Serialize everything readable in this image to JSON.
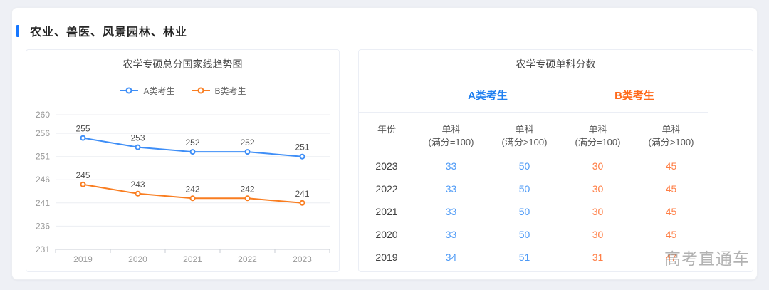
{
  "page": {
    "section_title": "农业、兽医、风景园林、林业",
    "watermark": "高考直通车",
    "accent_color": "#1677ff"
  },
  "chart_panel": {
    "title": "农学专硕总分国家线趋势图"
  },
  "chart_data": {
    "type": "line",
    "title": "农学专硕总分国家线趋势图",
    "categories": [
      "2019",
      "2020",
      "2021",
      "2022",
      "2023"
    ],
    "series": [
      {
        "name": "A类考生",
        "color": "#3e8ef7",
        "values": [
          255,
          253,
          252,
          252,
          251
        ]
      },
      {
        "name": "B类考生",
        "color": "#f97d20",
        "values": [
          245,
          243,
          242,
          242,
          241
        ]
      }
    ],
    "y_ticks": [
      231,
      236,
      241,
      246,
      251,
      256,
      260
    ],
    "ylim": [
      231,
      260
    ],
    "grid": true,
    "legend_position": "top",
    "data_labels": true
  },
  "table_panel": {
    "title": "农学专硕单科分数",
    "groups": [
      {
        "label": "A类考生",
        "color": "#2080f0"
      },
      {
        "label": "B类考生",
        "color": "#ff6a1a"
      }
    ],
    "year_header": "年份",
    "score_columns": [
      {
        "line1": "单科",
        "line2": "(满分=100)"
      },
      {
        "line1": "单科",
        "line2": "(满分>100)"
      },
      {
        "line1": "单科",
        "line2": "(满分=100)"
      },
      {
        "line1": "单科",
        "line2": "(满分>100)"
      }
    ],
    "rows": [
      {
        "year": "2023",
        "a1": "33",
        "a2": "50",
        "b1": "30",
        "b2": "45"
      },
      {
        "year": "2022",
        "a1": "33",
        "a2": "50",
        "b1": "30",
        "b2": "45"
      },
      {
        "year": "2021",
        "a1": "33",
        "a2": "50",
        "b1": "30",
        "b2": "45"
      },
      {
        "year": "2020",
        "a1": "33",
        "a2": "50",
        "b1": "30",
        "b2": "45"
      },
      {
        "year": "2019",
        "a1": "34",
        "a2": "51",
        "b1": "31",
        "b2": "47"
      }
    ]
  }
}
